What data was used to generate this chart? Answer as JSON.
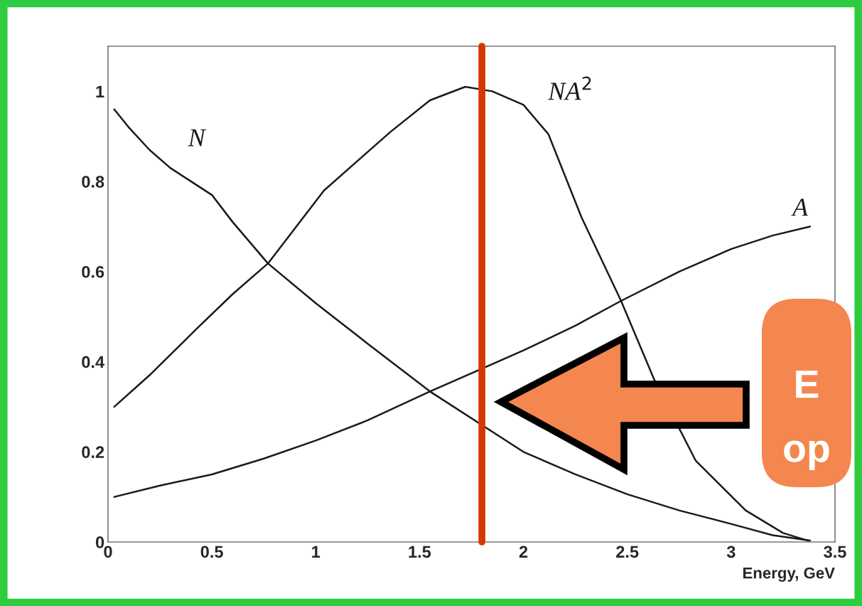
{
  "chart_data": {
    "type": "line",
    "xlabel": "Energy, GeV",
    "xlim": [
      0,
      3.5
    ],
    "ylim": [
      0,
      1.1
    ],
    "xticks": [
      0,
      0.5,
      1,
      1.5,
      2,
      2.5,
      3,
      3.5
    ],
    "yticks": [
      0,
      0.2,
      0.4,
      0.6,
      0.8,
      1
    ],
    "grid": false,
    "legend": false,
    "marker": "none",
    "line_style": "solid",
    "series": [
      {
        "name": "N",
        "color": "#1a1a1a",
        "x": [
          0.03,
          0.1,
          0.2,
          0.3,
          0.4,
          0.5,
          0.6,
          0.77,
          1.0,
          1.25,
          1.55,
          2.0,
          2.25,
          2.5,
          2.75,
          3.0,
          3.2,
          3.38
        ],
        "values": [
          0.96,
          0.92,
          0.87,
          0.83,
          0.8,
          0.77,
          0.71,
          0.618,
          0.53,
          0.44,
          0.334,
          0.2,
          0.15,
          0.106,
          0.07,
          0.04,
          0.015,
          0.003
        ]
      },
      {
        "name": "NA$^{2}$",
        "color": "#1a1a1a",
        "x": [
          0.03,
          0.2,
          0.42,
          0.6,
          0.77,
          1.04,
          1.36,
          1.55,
          1.72,
          1.85,
          2.0,
          2.12,
          2.28,
          2.47,
          2.63,
          2.83,
          3.07,
          3.25,
          3.37
        ],
        "values": [
          0.3,
          0.37,
          0.47,
          0.55,
          0.618,
          0.78,
          0.91,
          0.98,
          1.01,
          1.0,
          0.97,
          0.905,
          0.72,
          0.535,
          0.36,
          0.18,
          0.07,
          0.02,
          0.003
        ]
      },
      {
        "name": "A",
        "color": "#1a1a1a",
        "x": [
          0.03,
          0.25,
          0.5,
          0.75,
          1.0,
          1.25,
          1.55,
          2.0,
          2.25,
          2.47,
          2.75,
          3.0,
          3.2,
          3.38
        ],
        "values": [
          0.1,
          0.125,
          0.15,
          0.185,
          0.225,
          0.27,
          0.334,
          0.425,
          0.48,
          0.535,
          0.6,
          0.65,
          0.68,
          0.7
        ]
      }
    ],
    "ref_lines": [
      {
        "axis": "x",
        "value": 1.8,
        "color": "#d23a00",
        "line_style": "solid"
      }
    ],
    "annotations": [
      "E",
      "op"
    ]
  }
}
